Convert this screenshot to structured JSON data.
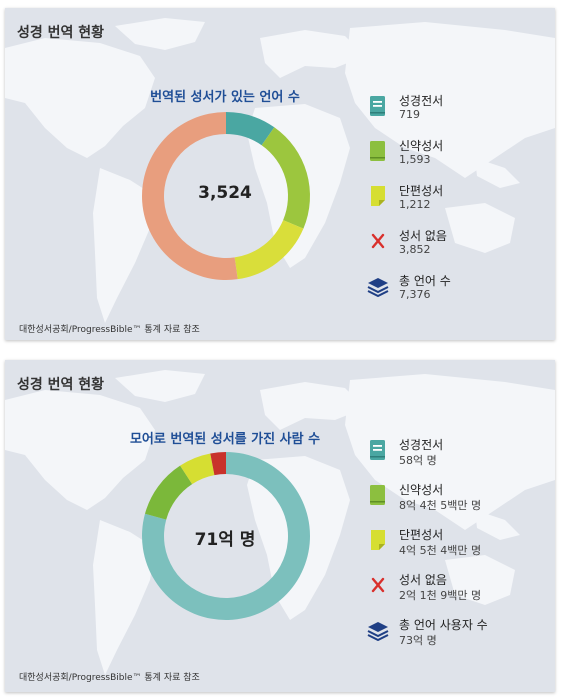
{
  "panels": [
    {
      "title": "성경 번역 현황",
      "center_label": "3,524",
      "source": "대한성서공회/ProgressBible™ 통계 자료 참조",
      "chart_data": {
        "type": "pie",
        "title": "번역된 성서가 있는 언어 수",
        "categories": [
          "성경전서",
          "신약성서",
          "단편성서",
          "성서 없음"
        ],
        "values": [
          719,
          1593,
          1212,
          3852
        ],
        "colors": [
          "#4aa7a2",
          "#9cc63e",
          "#d9de3a",
          "#e89e7e"
        ],
        "legend_position": "right"
      },
      "legend": [
        {
          "label": "성경전서",
          "value": "719",
          "icon": "book-icon",
          "color": "#4aa7a2"
        },
        {
          "label": "신약성서",
          "value": "1,593",
          "icon": "book-icon",
          "color": "#8cbf3f"
        },
        {
          "label": "단편성서",
          "value": "1,212",
          "icon": "page-icon",
          "color": "#d6de32"
        },
        {
          "label": "성서 없음",
          "value": "3,852",
          "icon": "x-icon",
          "color": "#d9302c"
        },
        {
          "label": "총 언어 수",
          "value": "7,376",
          "icon": "layers-icon",
          "color": "#1f3f85"
        }
      ]
    },
    {
      "title": "성경 번역 현황",
      "center_label": "71억 명",
      "source": "대한성서공회/ProgressBible™ 통계 자료 참조",
      "chart_data": {
        "type": "pie",
        "title": "모어로 번역된 성서를 가진 사람 수",
        "categories": [
          "성경전서",
          "신약성서",
          "단편성서",
          "성서 없음"
        ],
        "values": [
          5800,
          845,
          454,
          219
        ],
        "colors": [
          "#7cc0bd",
          "#7bb83a",
          "#d6de32",
          "#c8322b"
        ],
        "legend_position": "right"
      },
      "legend": [
        {
          "label": "성경전서",
          "value": "58억 명",
          "icon": "book-icon",
          "color": "#4aa7a2"
        },
        {
          "label": "신약성서",
          "value": "8억 4천 5백만 명",
          "icon": "book-icon",
          "color": "#8cbf3f"
        },
        {
          "label": "단편성서",
          "value": "4억 5천 4백만 명",
          "icon": "page-icon",
          "color": "#d6de32"
        },
        {
          "label": "성서 없음",
          "value": "2억 1천 9백만 명",
          "icon": "x-icon",
          "color": "#d9302c"
        },
        {
          "label": "총 언어 사용자 수",
          "value": "73억 명",
          "icon": "layers-icon",
          "color": "#1f3f85"
        }
      ]
    }
  ]
}
